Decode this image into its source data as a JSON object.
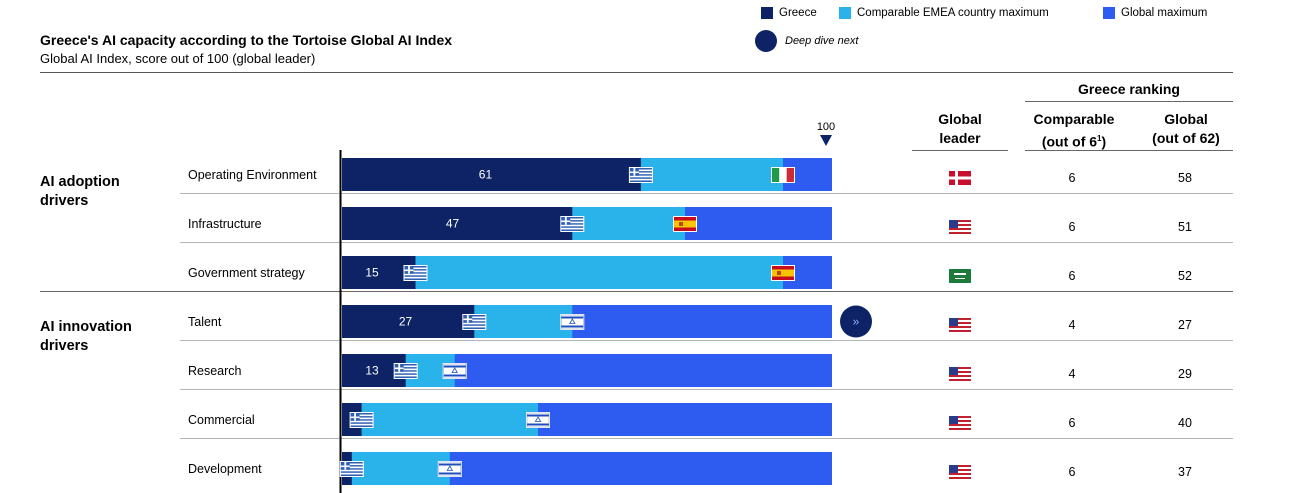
{
  "title": "Greece's AI capacity according to the Tortoise Global AI Index",
  "subtitle": "Global AI Index, score out of 100 (global leader)",
  "legend": [
    {
      "label": "Greece",
      "color": "#0d2366"
    },
    {
      "label": "Comparable EMEA country maximum",
      "color": "#29b3ea"
    },
    {
      "label": "Global maximum",
      "color": "#2e5cf0"
    }
  ],
  "deep_dive_label": "Deep dive next",
  "scale_marker": "100",
  "headers": {
    "global_leader": [
      "Global",
      "leader"
    ],
    "greece_ranking": "Greece ranking",
    "comparable": [
      "Comparable",
      "(out of 6",
      "1",
      ")"
    ],
    "global": [
      "Global",
      "(out of 62)"
    ]
  },
  "groups": [
    {
      "label": [
        "AI adoption",
        "drivers"
      ]
    },
    {
      "label": [
        "AI innovation",
        "drivers"
      ]
    }
  ],
  "colors": {
    "greece": "#0d2366",
    "emea": "#29b3ea",
    "global": "#2e5cf0"
  },
  "chart_data": {
    "type": "bar",
    "xlim": [
      0,
      100
    ],
    "categories": [
      "Operating Environment",
      "Infrastructure",
      "Government strategy",
      "Talent",
      "Research",
      "Commercial",
      "Development"
    ],
    "groups": [
      {
        "name": "AI adoption drivers",
        "categories": [
          "Operating Environment",
          "Infrastructure",
          "Government strategy"
        ]
      },
      {
        "name": "AI innovation drivers",
        "categories": [
          "Talent",
          "Research",
          "Commercial",
          "Development"
        ]
      }
    ],
    "series": [
      {
        "name": "Greece",
        "values": [
          61,
          47,
          15,
          27,
          13,
          4,
          2
        ],
        "data_labels": [
          "61",
          "47",
          "15",
          "27",
          "13",
          "",
          ""
        ]
      },
      {
        "name": "Comparable EMEA country maximum",
        "values": [
          90,
          70,
          90,
          47,
          23,
          40,
          22
        ]
      },
      {
        "name": "Global maximum",
        "values": [
          100,
          100,
          100,
          100,
          100,
          100,
          100
        ]
      }
    ],
    "emea_max_flag": [
      "italy",
      "spain",
      "spain",
      "israel",
      "israel",
      "israel",
      "israel"
    ],
    "global_leader_flag": [
      "denmark",
      "usa",
      "saudi-arabia",
      "usa",
      "usa",
      "usa",
      "usa"
    ],
    "greece_rank_comparable": [
      "6",
      "6",
      "6",
      "4",
      "4",
      "6",
      "6"
    ],
    "greece_rank_global": [
      "58",
      "51",
      "52",
      "27",
      "29",
      "40",
      "37"
    ],
    "deep_dive": [
      "",
      "",
      "",
      "Talent",
      "",
      "",
      ""
    ]
  }
}
